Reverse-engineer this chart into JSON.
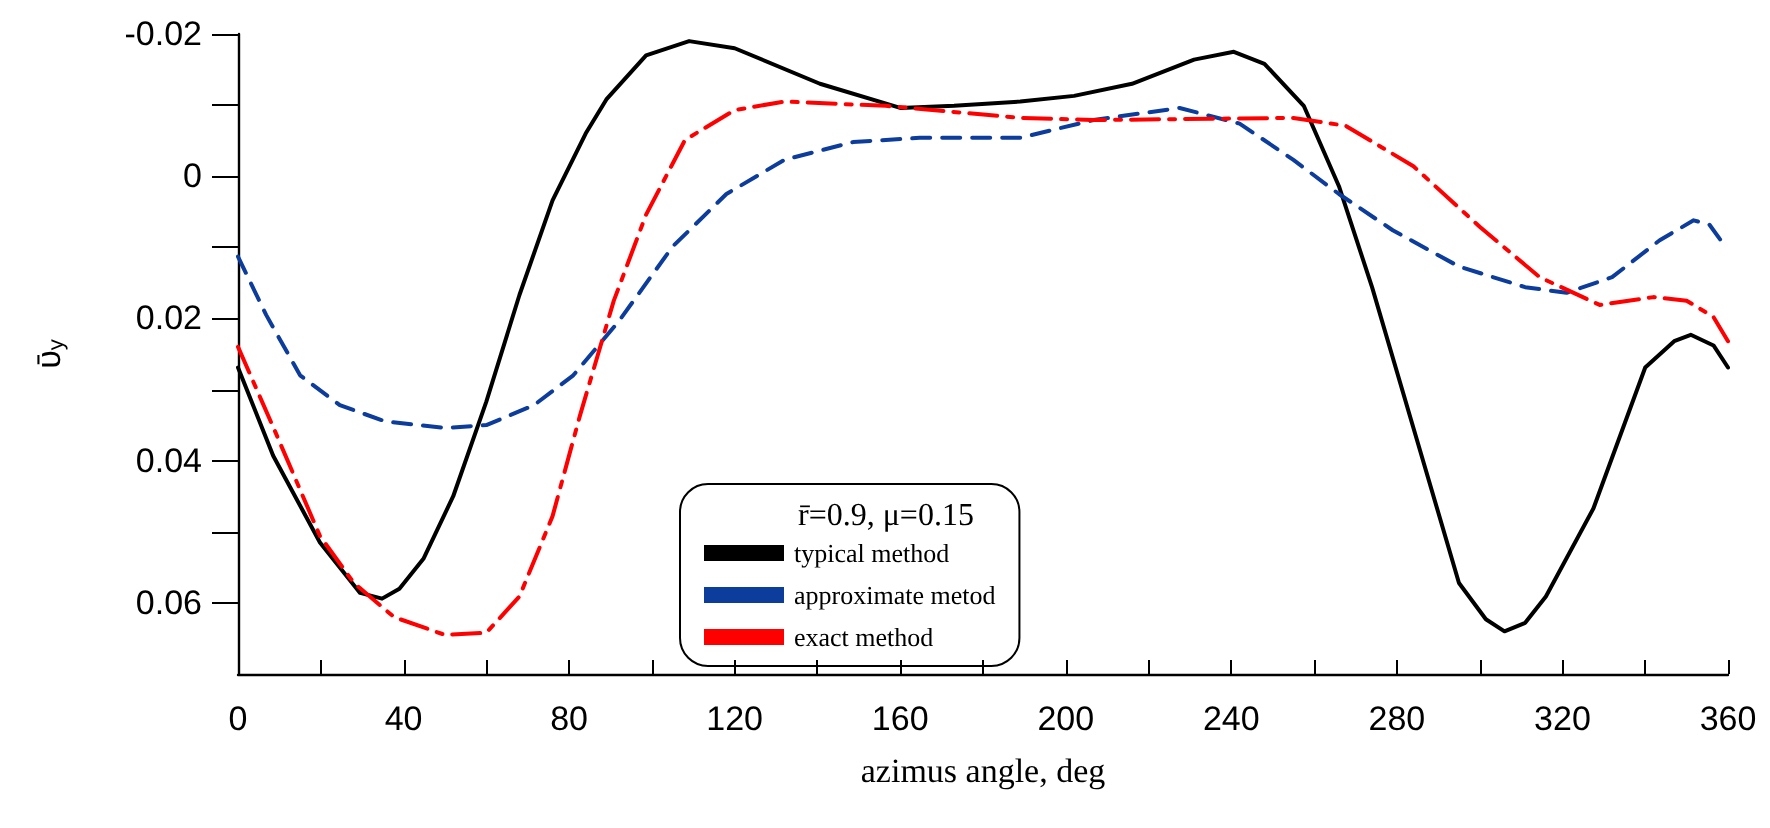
{
  "chart_data": {
    "type": "line",
    "xlabel": "azimus angle, deg",
    "ylabel": "ῡ$_{y}$",
    "legend_title": "r̄=0.9, μ=0.15",
    "legend": "bottom",
    "grid": false,
    "marker": "none",
    "xlim": [
      0,
      360
    ],
    "xticks": [
      0,
      {
        "value": 20,
        "label": null
      },
      40,
      {
        "value": 60,
        "label": null
      },
      80,
      {
        "value": 100,
        "label": null
      },
      120,
      {
        "value": 140,
        "label": null
      },
      160,
      {
        "value": 180,
        "label": null
      },
      200,
      {
        "value": 220,
        "label": null
      },
      240,
      {
        "value": 260,
        "label": null
      },
      280,
      {
        "value": 300,
        "label": null
      },
      320,
      {
        "value": 340,
        "label": null
      },
      360
    ],
    "ylim": [
      0.07,
      -0.02
    ],
    "yticks": [
      -0.02,
      {
        "value": -0.01,
        "label": null
      },
      0,
      {
        "value": 0.01,
        "label": null
      },
      0.02,
      {
        "value": 0.03,
        "label": null
      },
      0.04,
      {
        "value": 0.05,
        "label": null
      },
      0.06
    ],
    "series": [
      {
        "name": "typical method",
        "color": "#000000",
        "line_style": "solid",
        "x": [
          0,
          8.5,
          19.8,
          29.5,
          34.8,
          39,
          44.8,
          52,
          60,
          68,
          76,
          84,
          89,
          98.6,
          109,
          120,
          140.6,
          160,
          173,
          189,
          202,
          216,
          231,
          240.6,
          248,
          257.5,
          266,
          274,
          284,
          295,
          301.5,
          306,
          311,
          316,
          327.5,
          340,
          347,
          351,
          356.5,
          360
        ],
        "values": [
          0.0269,
          0.0393,
          0.0515,
          0.0586,
          0.0594,
          0.058,
          0.0538,
          0.045,
          0.0317,
          0.0167,
          0.0034,
          -0.006,
          -0.0108,
          -0.017,
          -0.019,
          -0.018,
          -0.013,
          -0.0096,
          -0.0099,
          -0.0105,
          -0.0113,
          -0.013,
          -0.0164,
          -0.0175,
          -0.0158,
          -0.0099,
          0.0014,
          0.0156,
          0.0354,
          0.0572,
          0.0623,
          0.064,
          0.0628,
          0.0591,
          0.0467,
          0.0269,
          0.0232,
          0.0223,
          0.0238,
          0.0269
        ]
      },
      {
        "name": "approximate metod",
        "color": "#0d3d9c",
        "line_style": "dashed",
        "x": [
          0,
          6.8,
          15,
          24.6,
          35.7,
          50,
          60,
          71.5,
          81,
          92,
          105,
          118,
          132,
          148.6,
          164.7,
          189,
          206.7,
          227.5,
          242,
          255,
          266,
          279,
          295,
          311,
          321,
          332,
          343.5,
          351.7,
          355.5,
          359
        ],
        "values": [
          0.0113,
          0.0195,
          0.028,
          0.0322,
          0.0345,
          0.0354,
          0.035,
          0.0322,
          0.028,
          0.0204,
          0.0099,
          0.0025,
          -0.0023,
          -0.0048,
          -0.0054,
          -0.0054,
          -0.0079,
          -0.0096,
          -0.0074,
          -0.0023,
          0.0025,
          0.0076,
          0.0127,
          0.0156,
          0.0164,
          0.0142,
          0.009,
          0.0062,
          0.0068,
          0.0096
        ]
      },
      {
        "name": "exact method",
        "color": "#ff0000",
        "line_style": "dashdot",
        "x": [
          0,
          8.6,
          19.8,
          28,
          37.7,
          50,
          60,
          68,
          76,
          82.6,
          90.8,
          98.6,
          108,
          120,
          132,
          156.5,
          189,
          206.7,
          255,
          267.6,
          284,
          300,
          314.5,
          329,
          342,
          350,
          356.5,
          360
        ],
        "values": [
          0.024,
          0.0354,
          0.0506,
          0.0572,
          0.062,
          0.0645,
          0.0642,
          0.0591,
          0.0478,
          0.0337,
          0.0175,
          0.0054,
          -0.0051,
          -0.0093,
          -0.0105,
          -0.0099,
          -0.0082,
          -0.0079,
          -0.0082,
          -0.0071,
          -0.0014,
          0.0071,
          0.0142,
          0.0181,
          0.017,
          0.0175,
          0.0198,
          0.0232
        ]
      }
    ]
  }
}
